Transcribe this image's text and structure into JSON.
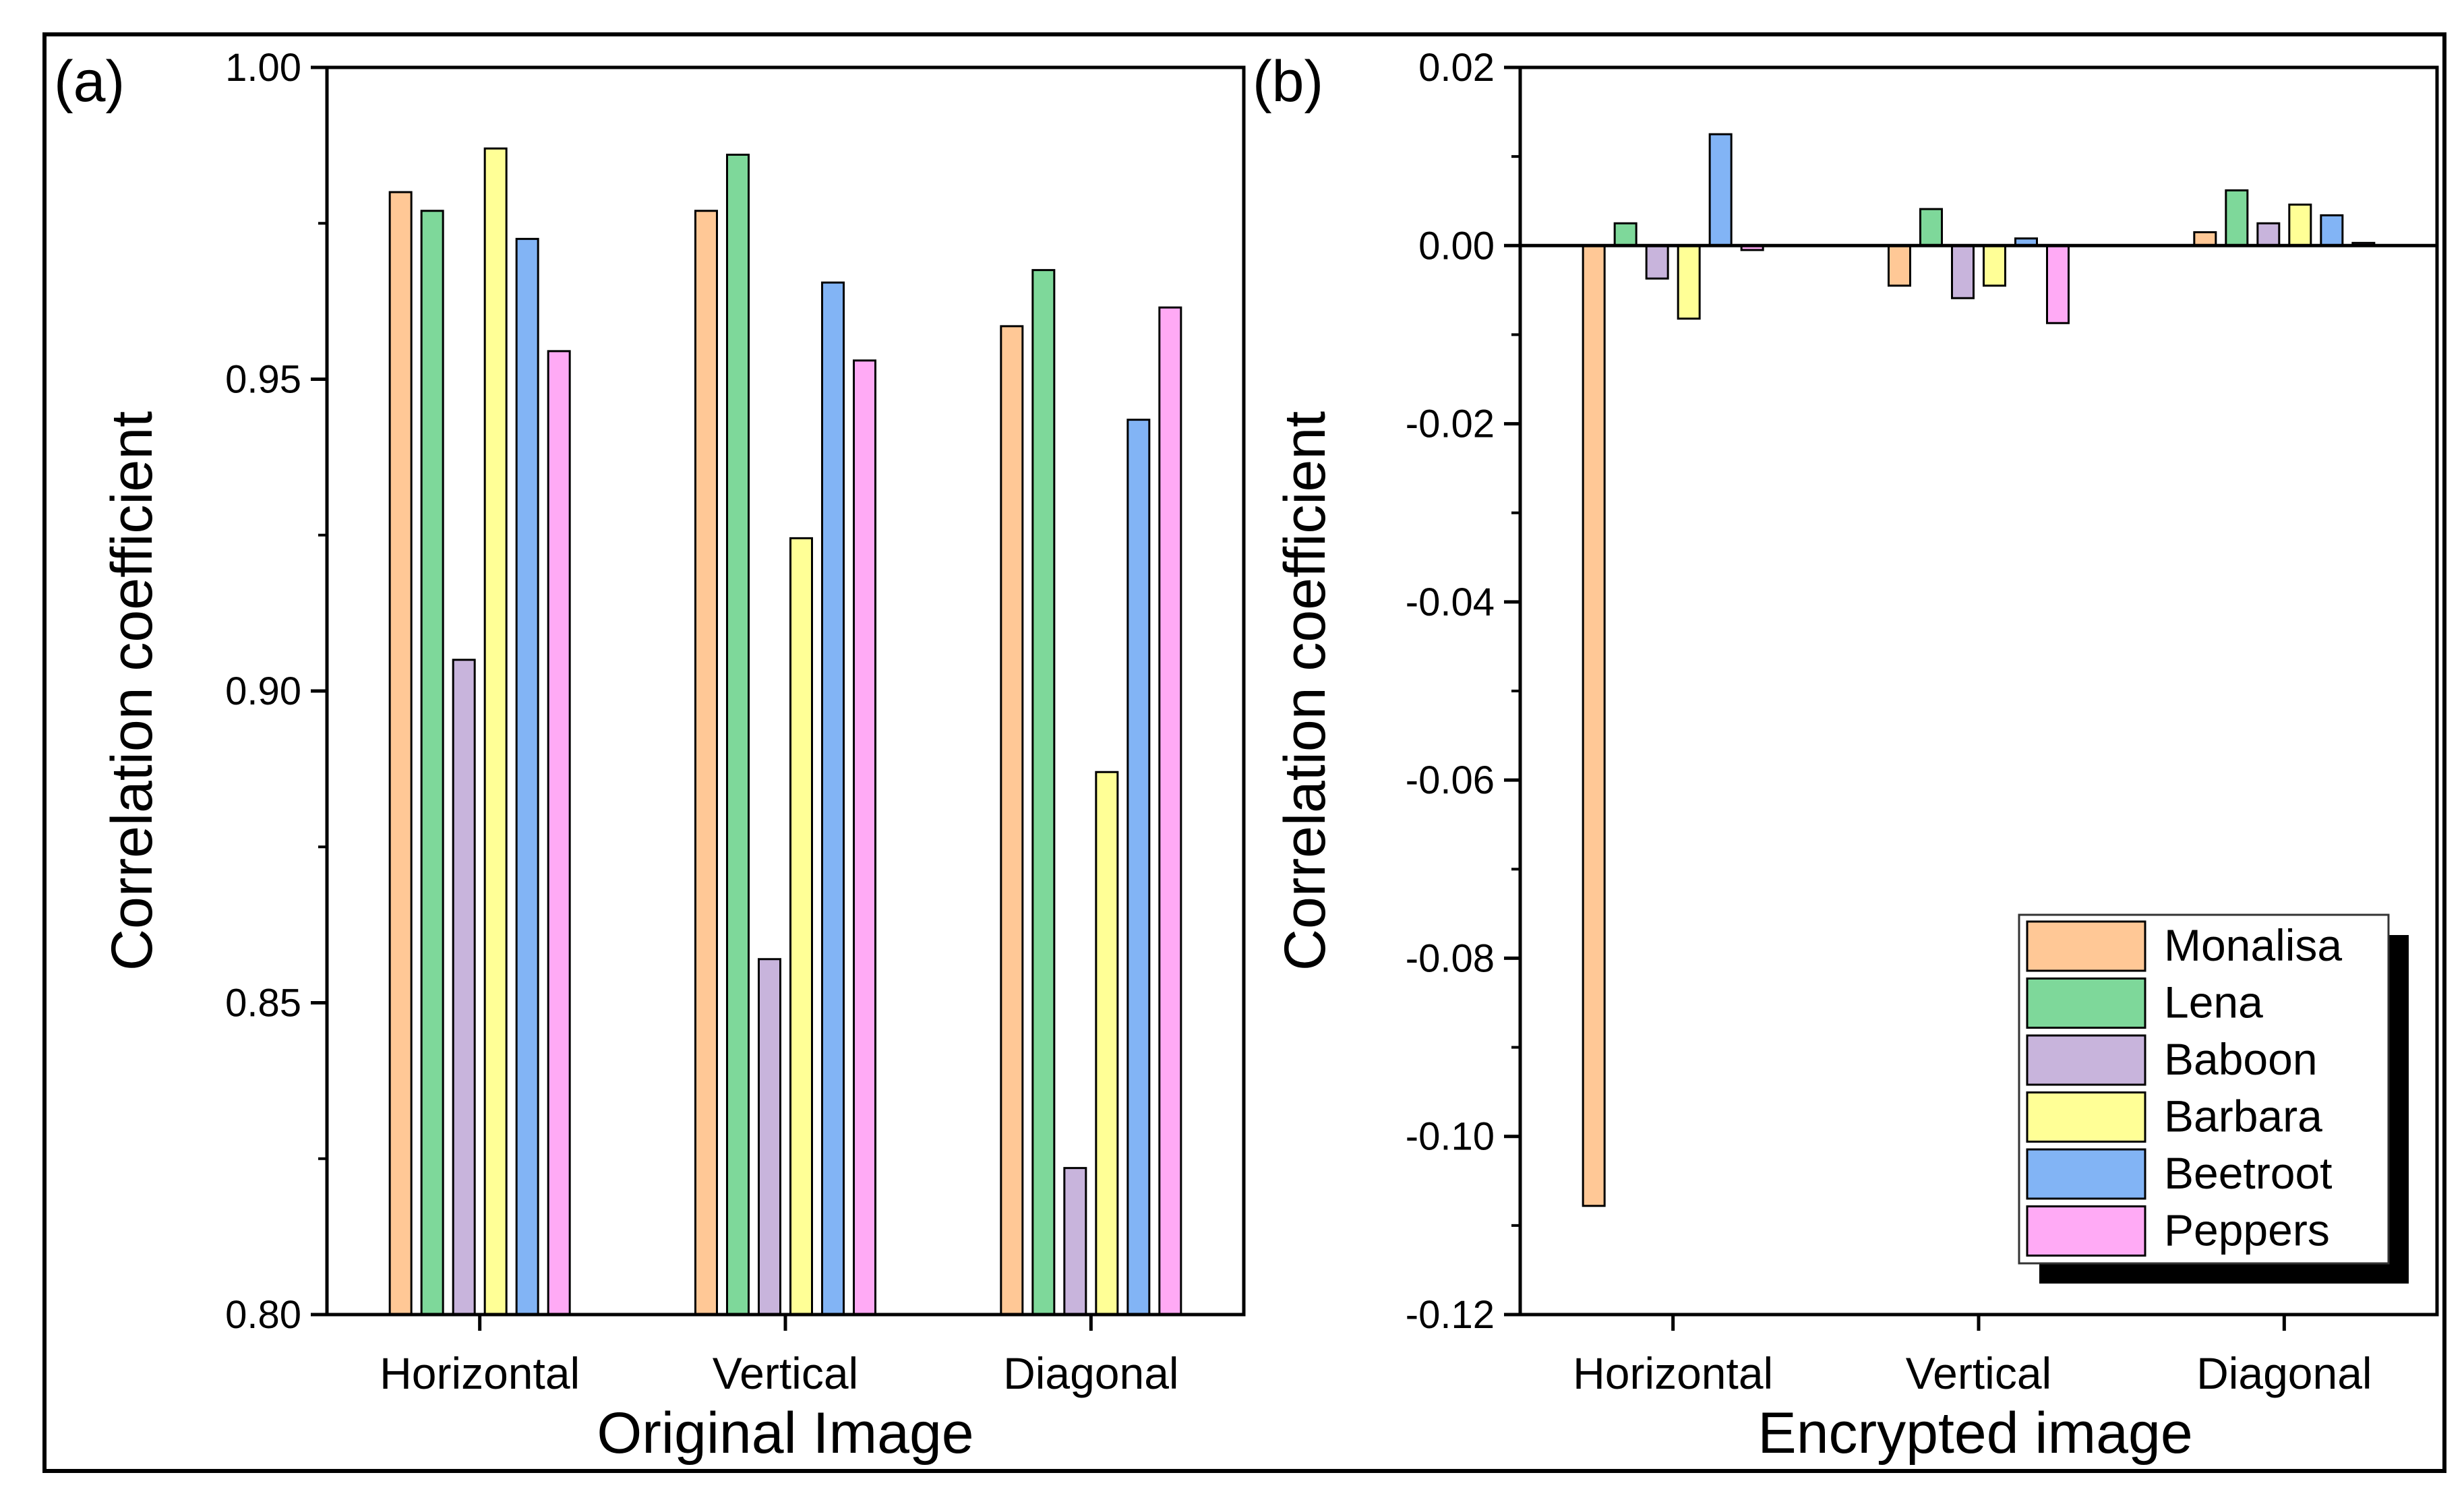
{
  "figure": {
    "series_colors": [
      "#FFC896",
      "#7ED89A",
      "#C8B4DC",
      "#FFFF96",
      "#82B4F5",
      "#FFAAF5"
    ],
    "legend_entries": [
      "Monalisa",
      "Lena",
      "Baboon",
      "Barbara",
      "Beetroot",
      "Peppers"
    ]
  },
  "chart_data": [
    {
      "type": "bar",
      "panel_label": "(a)",
      "title": "",
      "xlabel": "Original Image",
      "ylabel": "Correlation coefficient",
      "categories": [
        "Horizontal",
        "Vertical",
        "Diagonal"
      ],
      "ylim": [
        0.8,
        1.0
      ],
      "yticks": [
        0.8,
        0.85,
        0.9,
        0.95,
        1.0
      ],
      "ytick_labels": [
        "0.80",
        "0.85",
        "0.90",
        "0.95",
        "1.00"
      ],
      "grid": false,
      "series": [
        {
          "name": "Monalisa",
          "values": [
            0.98,
            0.977,
            0.9585
          ]
        },
        {
          "name": "Lena",
          "values": [
            0.977,
            0.986,
            0.9675
          ]
        },
        {
          "name": "Baboon",
          "values": [
            0.905,
            0.857,
            0.8235
          ]
        },
        {
          "name": "Barbara",
          "values": [
            0.987,
            0.9245,
            0.887
          ]
        },
        {
          "name": "Beetroot",
          "values": [
            0.9725,
            0.9655,
            0.9435
          ]
        },
        {
          "name": "Peppers",
          "values": [
            0.9545,
            0.953,
            0.9615
          ]
        }
      ]
    },
    {
      "type": "bar",
      "panel_label": "(b)",
      "title": "",
      "xlabel": "Encrypted image",
      "ylabel": "Correlation coefficient",
      "categories": [
        "Horizontal",
        "Vertical",
        "Diagonal"
      ],
      "ylim": [
        -0.12,
        0.02
      ],
      "yticks": [
        -0.12,
        -0.1,
        -0.08,
        -0.06,
        -0.04,
        -0.02,
        0.0,
        0.02
      ],
      "ytick_labels": [
        "-0.12",
        "-0.10",
        "-0.08",
        "-0.06",
        "-0.04",
        "-0.02",
        "0.00",
        "0.02"
      ],
      "grid": false,
      "legend_position": "bottom-right",
      "series": [
        {
          "name": "Monalisa",
          "values": [
            -0.1078,
            -0.0045,
            0.0015
          ]
        },
        {
          "name": "Lena",
          "values": [
            0.0025,
            0.0041,
            0.0062
          ]
        },
        {
          "name": "Baboon",
          "values": [
            -0.0037,
            -0.0059,
            0.0025
          ]
        },
        {
          "name": "Barbara",
          "values": [
            -0.0082,
            -0.0045,
            0.0046
          ]
        },
        {
          "name": "Beetroot",
          "values": [
            0.0125,
            0.0008,
            0.0034
          ]
        },
        {
          "name": "Peppers",
          "values": [
            -0.0005,
            -0.0087,
            0.0003
          ]
        }
      ]
    }
  ]
}
